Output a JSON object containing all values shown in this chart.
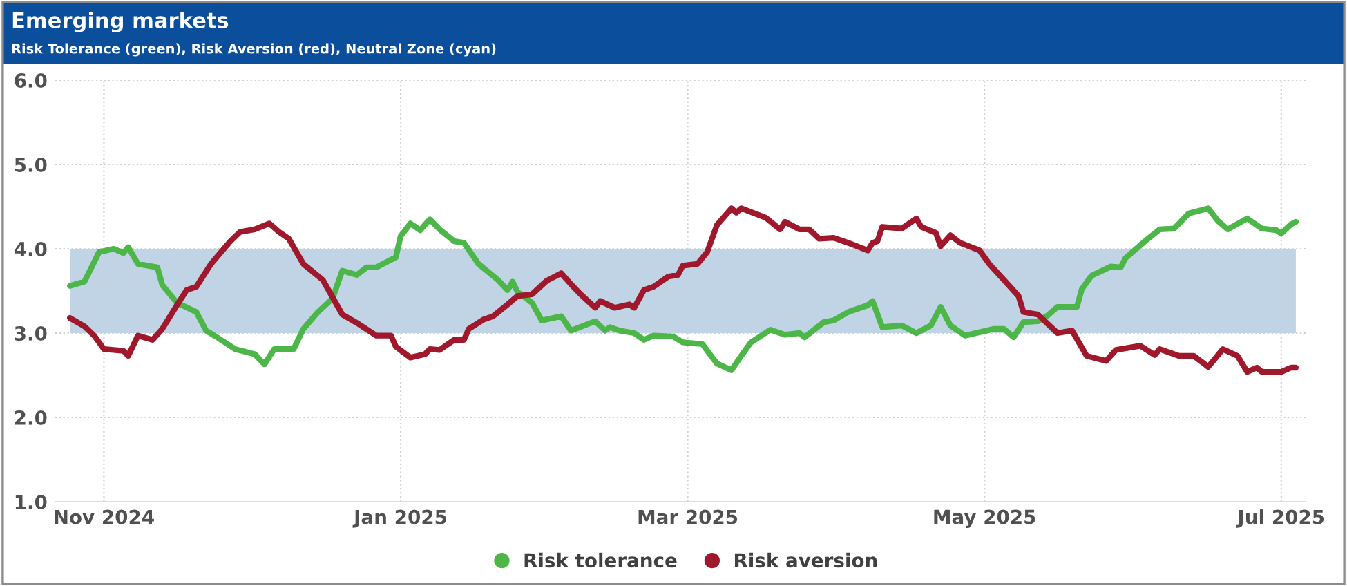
{
  "chart_data": {
    "type": "line",
    "title": "Emerging markets",
    "subtitle": "Risk Tolerance (green), Risk Aversion (red), Neutral Zone (cyan)",
    "xlim": [
      "2024-10-22",
      "2025-07-06"
    ],
    "xticks": [
      {
        "value": "2024-11-01",
        "label": "Nov 2024"
      },
      {
        "value": "2025-01-01",
        "label": "Jan 2025"
      },
      {
        "value": "2025-03-01",
        "label": "Mar 2025"
      },
      {
        "value": "2025-05-01",
        "label": "May 2025"
      },
      {
        "value": "2025-07-01",
        "label": "Jul 2025"
      }
    ],
    "ylim": [
      1,
      6
    ],
    "yticks": [
      {
        "value": 1,
        "label": "1.0"
      },
      {
        "value": 2,
        "label": "2.0"
      },
      {
        "value": 3,
        "label": "3.0"
      },
      {
        "value": 4,
        "label": "4.0"
      },
      {
        "value": 5,
        "label": "5.0"
      },
      {
        "value": 6,
        "label": "6.0"
      }
    ],
    "bands": [
      {
        "axis": "y",
        "from": 3,
        "to": 4,
        "color": "#c0d4e6"
      }
    ],
    "grid": true,
    "legend": "bottom",
    "marker": "none",
    "line_style": "solid",
    "series": [
      {
        "name": "Risk tolerance",
        "color": "#4cb648",
        "x": [
          "2024-10-25",
          "2024-10-28",
          "2024-10-31",
          "2024-11-03",
          "2024-11-05",
          "2024-11-06",
          "2024-11-08",
          "2024-11-12",
          "2024-11-13",
          "2024-11-16",
          "2024-11-20",
          "2024-11-22",
          "2024-11-24",
          "2024-11-28",
          "2024-12-02",
          "2024-12-04",
          "2024-12-06",
          "2024-12-10",
          "2024-12-12",
          "2024-12-15",
          "2024-12-18",
          "2024-12-20",
          "2024-12-23",
          "2024-12-25",
          "2024-12-27",
          "2024-12-31",
          "2025-01-01",
          "2025-01-03",
          "2025-01-05",
          "2025-01-07",
          "2025-01-09",
          "2025-01-12",
          "2025-01-14",
          "2025-01-17",
          "2025-01-21",
          "2025-01-23",
          "2025-01-24",
          "2025-01-25",
          "2025-01-28",
          "2025-01-30",
          "2025-02-03",
          "2025-02-05",
          "2025-02-10",
          "2025-02-12",
          "2025-02-13",
          "2025-02-15",
          "2025-02-18",
          "2025-02-20",
          "2025-02-22",
          "2025-02-26",
          "2025-02-28",
          "2025-03-04",
          "2025-03-07",
          "2025-03-10",
          "2025-03-12",
          "2025-03-14",
          "2025-03-18",
          "2025-03-21",
          "2025-03-24",
          "2025-03-25",
          "2025-03-29",
          "2025-03-31",
          "2025-04-03",
          "2025-04-07",
          "2025-04-08",
          "2025-04-10",
          "2025-04-14",
          "2025-04-17",
          "2025-04-20",
          "2025-04-22",
          "2025-04-24",
          "2025-04-27",
          "2025-05-03",
          "2025-05-05",
          "2025-05-07",
          "2025-05-09",
          "2025-05-12",
          "2025-05-14",
          "2025-05-16",
          "2025-05-20",
          "2025-05-21",
          "2025-05-23",
          "2025-05-27",
          "2025-05-29",
          "2025-05-30",
          "2025-06-03",
          "2025-06-06",
          "2025-06-09",
          "2025-06-12",
          "2025-06-16",
          "2025-06-18",
          "2025-06-20",
          "2025-06-24",
          "2025-06-27",
          "2025-06-30",
          "2025-07-01",
          "2025-07-03",
          "2025-07-04"
        ],
        "values": [
          3.56,
          3.61,
          3.96,
          4.0,
          3.95,
          4.02,
          3.82,
          3.78,
          3.57,
          3.36,
          3.25,
          3.03,
          2.96,
          2.81,
          2.75,
          2.63,
          2.81,
          2.81,
          3.05,
          3.25,
          3.41,
          3.74,
          3.69,
          3.78,
          3.78,
          3.9,
          4.15,
          4.3,
          4.22,
          4.35,
          4.23,
          4.09,
          4.07,
          3.82,
          3.63,
          3.51,
          3.61,
          3.49,
          3.36,
          3.15,
          3.2,
          3.03,
          3.14,
          3.03,
          3.07,
          3.03,
          3.0,
          2.92,
          2.97,
          2.96,
          2.89,
          2.87,
          2.64,
          2.56,
          2.73,
          2.89,
          3.04,
          2.98,
          3.0,
          2.95,
          3.13,
          3.15,
          3.25,
          3.33,
          3.38,
          3.07,
          3.09,
          3.0,
          3.09,
          3.31,
          3.09,
          2.97,
          3.05,
          3.05,
          2.95,
          3.13,
          3.14,
          3.21,
          3.31,
          3.31,
          3.52,
          3.68,
          3.79,
          3.78,
          3.89,
          4.09,
          4.23,
          4.24,
          4.42,
          4.48,
          4.33,
          4.23,
          4.36,
          4.24,
          4.22,
          4.18,
          4.29,
          4.32
        ]
      },
      {
        "name": "Risk aversion",
        "color": "#a0182c",
        "x": [
          "2024-10-25",
          "2024-10-28",
          "2024-10-30",
          "2024-11-01",
          "2024-11-05",
          "2024-11-06",
          "2024-11-08",
          "2024-11-11",
          "2024-11-13",
          "2024-11-16",
          "2024-11-18",
          "2024-11-20",
          "2024-11-23",
          "2024-11-27",
          "2024-11-29",
          "2024-12-02",
          "2024-12-05",
          "2024-12-07",
          "2024-12-09",
          "2024-12-12",
          "2024-12-16",
          "2024-12-20",
          "2024-12-23",
          "2024-12-27",
          "2024-12-30",
          "2024-12-31",
          "2025-01-03",
          "2025-01-06",
          "2025-01-07",
          "2025-01-09",
          "2025-01-12",
          "2025-01-14",
          "2025-01-15",
          "2025-01-18",
          "2025-01-20",
          "2025-01-23",
          "2025-01-25",
          "2025-01-28",
          "2025-01-31",
          "2025-02-03",
          "2025-02-05",
          "2025-02-07",
          "2025-02-10",
          "2025-02-11",
          "2025-02-14",
          "2025-02-17",
          "2025-02-18",
          "2025-02-20",
          "2025-02-22",
          "2025-02-25",
          "2025-02-27",
          "2025-02-28",
          "2025-03-03",
          "2025-03-05",
          "2025-03-07",
          "2025-03-10",
          "2025-03-11",
          "2025-03-12",
          "2025-03-17",
          "2025-03-20",
          "2025-03-21",
          "2025-03-24",
          "2025-03-26",
          "2025-03-28",
          "2025-03-31",
          "2025-04-03",
          "2025-04-07",
          "2025-04-08",
          "2025-04-09",
          "2025-04-10",
          "2025-04-14",
          "2025-04-17",
          "2025-04-18",
          "2025-04-21",
          "2025-04-22",
          "2025-04-24",
          "2025-04-26",
          "2025-04-30",
          "2025-05-02",
          "2025-05-05",
          "2025-05-08",
          "2025-05-09",
          "2025-05-12",
          "2025-05-16",
          "2025-05-19",
          "2025-05-22",
          "2025-05-26",
          "2025-05-28",
          "2025-06-02",
          "2025-06-05",
          "2025-06-06",
          "2025-06-10",
          "2025-06-13",
          "2025-06-16",
          "2025-06-19",
          "2025-06-22",
          "2025-06-24",
          "2025-06-26",
          "2025-06-27",
          "2025-07-01",
          "2025-07-03",
          "2025-07-04"
        ],
        "values": [
          3.18,
          3.08,
          2.97,
          2.81,
          2.79,
          2.73,
          2.97,
          2.92,
          3.05,
          3.33,
          3.51,
          3.55,
          3.82,
          4.09,
          4.2,
          4.23,
          4.3,
          4.2,
          4.12,
          3.82,
          3.63,
          3.22,
          3.12,
          2.97,
          2.97,
          2.84,
          2.71,
          2.75,
          2.81,
          2.8,
          2.92,
          2.92,
          3.05,
          3.16,
          3.2,
          3.34,
          3.44,
          3.46,
          3.62,
          3.71,
          3.58,
          3.46,
          3.3,
          3.38,
          3.3,
          3.34,
          3.3,
          3.51,
          3.55,
          3.67,
          3.69,
          3.8,
          3.82,
          3.96,
          4.28,
          4.48,
          4.43,
          4.48,
          4.37,
          4.23,
          4.32,
          4.23,
          4.23,
          4.12,
          4.13,
          4.07,
          3.98,
          4.07,
          4.09,
          4.26,
          4.24,
          4.36,
          4.26,
          4.19,
          4.03,
          4.16,
          4.07,
          3.98,
          3.82,
          3.63,
          3.44,
          3.25,
          3.22,
          3.0,
          3.03,
          2.73,
          2.67,
          2.8,
          2.85,
          2.74,
          2.81,
          2.73,
          2.73,
          2.6,
          2.81,
          2.73,
          2.54,
          2.59,
          2.54,
          2.54,
          2.59,
          2.59
        ]
      }
    ]
  }
}
